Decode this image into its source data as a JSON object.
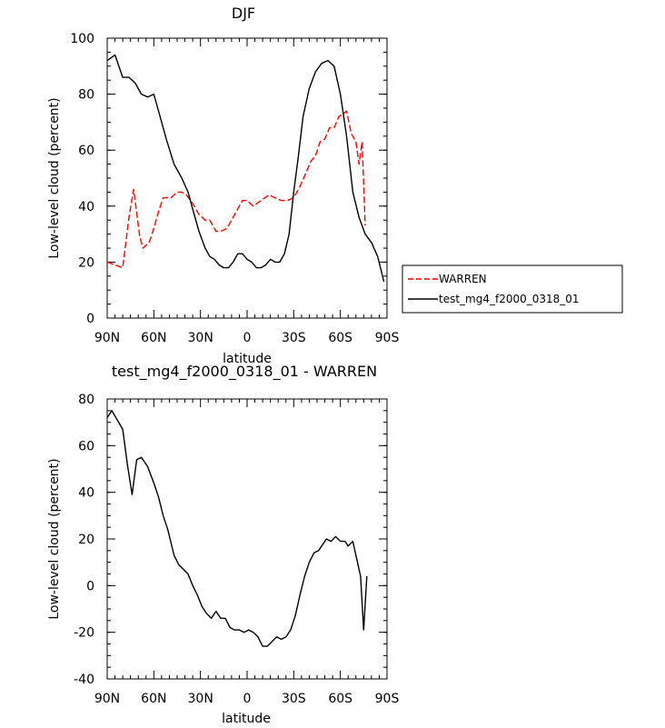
{
  "chart_data": [
    {
      "type": "line",
      "title": "DJF",
      "xlabel": "latitude",
      "ylabel": "Low-level cloud (percent)",
      "xlim": [
        90,
        -90
      ],
      "ylim": [
        0,
        100
      ],
      "xticks": [
        90,
        60,
        30,
        0,
        -30,
        -60,
        -90
      ],
      "xtick_labels": [
        "90N",
        "60N",
        "30N",
        "0",
        "30S",
        "60S",
        "90S"
      ],
      "yticks": [
        0,
        20,
        40,
        60,
        80,
        100
      ],
      "ytick_labels": [
        "0",
        "20",
        "40",
        "60",
        "80",
        "100"
      ],
      "legend": {
        "placement": "right",
        "entries": [
          {
            "name": "WARREN",
            "color": "#ff0000",
            "dash": "dashed"
          },
          {
            "name": "test_mg4_f2000_0318_01",
            "color": "#000000",
            "dash": "solid"
          }
        ]
      },
      "series": [
        {
          "name": "WARREN",
          "color": "#ff0000",
          "dash": "dashed",
          "x": [
            90,
            80,
            76,
            73,
            69,
            67,
            63,
            60,
            57,
            54,
            49,
            45,
            42,
            39,
            35,
            31,
            27,
            24,
            20,
            17,
            13,
            8,
            3,
            0,
            -4,
            -9,
            -14,
            -18,
            -22,
            -26,
            -30,
            -34,
            -38,
            -41,
            -44,
            -47,
            -50,
            -53,
            -56,
            -59,
            -62,
            -64,
            -67,
            -70,
            -72,
            -74,
            -76
          ],
          "y": [
            20,
            18,
            36,
            46,
            29,
            25,
            27,
            32,
            38,
            43,
            43,
            45,
            45,
            44,
            41,
            37,
            35,
            35,
            31,
            31,
            32,
            37,
            42,
            42,
            40,
            42,
            44,
            43,
            42,
            42,
            43,
            47,
            52,
            56,
            58,
            63,
            64,
            68,
            68,
            72,
            73,
            74,
            66,
            63,
            55,
            63,
            33
          ]
        },
        {
          "name": "test_mg4_f2000_0318_01",
          "color": "#000000",
          "dash": "solid",
          "x": [
            90,
            85,
            80,
            76,
            72,
            68,
            64,
            60,
            56,
            52,
            47,
            42,
            38,
            35,
            31,
            27,
            24,
            21,
            18,
            15,
            12,
            9,
            6,
            3,
            0,
            -3,
            -6,
            -9,
            -12,
            -15,
            -18,
            -21,
            -24,
            -27,
            -30,
            -33,
            -36,
            -40,
            -44,
            -48,
            -52,
            -56,
            -60,
            -64,
            -68,
            -72,
            -76,
            -80,
            -84,
            -88
          ],
          "y": [
            92,
            94,
            86,
            86,
            84,
            80,
            79,
            80,
            72,
            64,
            55,
            50,
            45,
            39,
            31,
            25,
            22,
            21,
            19,
            18,
            18,
            20,
            23,
            23,
            21,
            20,
            18,
            18,
            19,
            21,
            20,
            20,
            23,
            30,
            45,
            58,
            72,
            82,
            88,
            91,
            92,
            90,
            80,
            65,
            45,
            36,
            30,
            27,
            22,
            13
          ]
        }
      ]
    },
    {
      "type": "line",
      "title": "test_mg4_f2000_0318_01 - WARREN",
      "xlabel": "latitude",
      "ylabel": "Low-level cloud (percent)",
      "xlim": [
        90,
        -90
      ],
      "ylim": [
        -40,
        80
      ],
      "xticks": [
        90,
        60,
        30,
        0,
        -30,
        -60,
        -90
      ],
      "xtick_labels": [
        "90N",
        "60N",
        "30N",
        "0",
        "30S",
        "60S",
        "90S"
      ],
      "yticks": [
        -40,
        -20,
        0,
        20,
        40,
        60,
        80
      ],
      "ytick_labels": [
        "-40",
        "-20",
        "0",
        "20",
        "40",
        "60",
        "80"
      ],
      "series": [
        {
          "name": "test_mg4_f2000_0318_01 - WARREN",
          "color": "#000000",
          "dash": "solid",
          "x": [
            90,
            87,
            80,
            77,
            74,
            71,
            68,
            64,
            60,
            57,
            54,
            51,
            47,
            44,
            41,
            38,
            35,
            32,
            29,
            26,
            23,
            20,
            17,
            14,
            11,
            8,
            5,
            2,
            -1,
            -4,
            -7,
            -10,
            -13,
            -16,
            -19,
            -22,
            -25,
            -28,
            -31,
            -34,
            -37,
            -40,
            -43,
            -46,
            -48,
            -51,
            -54,
            -57,
            -60,
            -63,
            -65,
            -68,
            -71,
            -73,
            -75,
            -77
          ],
          "y": [
            72,
            75,
            67,
            52,
            39,
            54,
            55,
            51,
            44,
            38,
            30,
            24,
            13,
            9,
            7,
            5,
            0,
            -4,
            -9,
            -12,
            -14,
            -11,
            -14,
            -14,
            -18,
            -19,
            -19,
            -20,
            -19,
            -20,
            -22,
            -26,
            -26,
            -24,
            -22,
            -23,
            -22,
            -19,
            -13,
            -4,
            4,
            10,
            14,
            15,
            17,
            20,
            19,
            21,
            19,
            19,
            17,
            19,
            10,
            4,
            -19,
            4
          ]
        }
      ]
    }
  ]
}
